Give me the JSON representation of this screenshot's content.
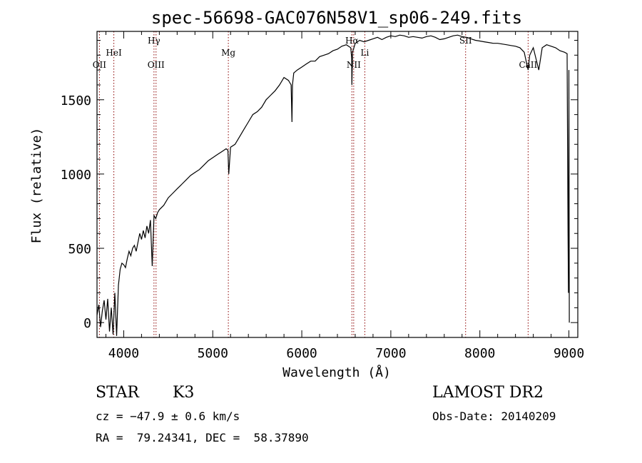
{
  "chart_data": {
    "type": "line",
    "title": "spec-56698-GAC076N58V1_sp06-249.fits",
    "xlabel": "Wavelength (Å)",
    "ylabel": "Flux (relative)",
    "xlim": [
      3700,
      9100
    ],
    "ylim": [
      -100,
      1960
    ],
    "x_ticks": [
      4000,
      5000,
      6000,
      7000,
      8000,
      9000
    ],
    "y_ticks": [
      0,
      500,
      1000,
      1500
    ],
    "x_tick_labels": [
      "4000",
      "5000",
      "6000",
      "7000",
      "8000",
      "9000"
    ],
    "y_tick_labels": [
      "0",
      "500",
      "1000",
      "1500"
    ],
    "grid": false,
    "series": [
      {
        "x": [
          3700,
          3720,
          3740,
          3760,
          3780,
          3800,
          3820,
          3840,
          3860,
          3880,
          3900,
          3920,
          3940,
          3960,
          3980,
          4000,
          4020,
          4040,
          4060,
          4080,
          4100,
          4120,
          4140,
          4160,
          4180,
          4200,
          4220,
          4240,
          4260,
          4280,
          4300,
          4320,
          4340,
          4360,
          4380,
          4400,
          4450,
          4500,
          4550,
          4600,
          4650,
          4700,
          4750,
          4800,
          4850,
          4900,
          4950,
          5000,
          5050,
          5100,
          5150,
          5170,
          5180,
          5200,
          5250,
          5300,
          5350,
          5400,
          5450,
          5500,
          5550,
          5600,
          5650,
          5700,
          5750,
          5800,
          5850,
          5880,
          5890,
          5895,
          5910,
          5950,
          6000,
          6050,
          6100,
          6150,
          6200,
          6250,
          6300,
          6350,
          6400,
          6450,
          6500,
          6550,
          6560,
          6563,
          6570,
          6600,
          6650,
          6700,
          6750,
          6800,
          6850,
          6900,
          6950,
          7000,
          7050,
          7100,
          7150,
          7200,
          7250,
          7300,
          7350,
          7400,
          7450,
          7500,
          7550,
          7600,
          7650,
          7700,
          7750,
          7800,
          7850,
          7900,
          7950,
          8000,
          8050,
          8100,
          8150,
          8200,
          8250,
          8300,
          8350,
          8400,
          8450,
          8498,
          8520,
          8542,
          8560,
          8600,
          8662,
          8700,
          8750,
          8800,
          8850,
          8900,
          8950,
          8980,
          8990,
          8995,
          9000,
          9005
        ],
        "y": [
          50,
          120,
          -30,
          80,
          150,
          20,
          160,
          -60,
          100,
          -80,
          200,
          -90,
          250,
          360,
          400,
          390,
          370,
          430,
          480,
          450,
          500,
          520,
          480,
          540,
          600,
          560,
          620,
          570,
          650,
          600,
          690,
          380,
          720,
          700,
          740,
          760,
          790,
          840,
          870,
          900,
          930,
          960,
          990,
          1010,
          1030,
          1060,
          1090,
          1110,
          1130,
          1150,
          1170,
          1160,
          1000,
          1180,
          1200,
          1250,
          1300,
          1350,
          1400,
          1420,
          1450,
          1500,
          1530,
          1560,
          1600,
          1650,
          1630,
          1600,
          1350,
          1600,
          1680,
          1700,
          1720,
          1740,
          1760,
          1760,
          1790,
          1800,
          1810,
          1830,
          1840,
          1860,
          1870,
          1850,
          1780,
          1600,
          1820,
          1880,
          1900,
          1890,
          1900,
          1910,
          1920,
          1905,
          1920,
          1930,
          1925,
          1935,
          1930,
          1920,
          1925,
          1920,
          1915,
          1925,
          1930,
          1920,
          1905,
          1910,
          1920,
          1930,
          1935,
          1925,
          1920,
          1910,
          1900,
          1895,
          1890,
          1885,
          1880,
          1880,
          1875,
          1870,
          1865,
          1860,
          1850,
          1820,
          1760,
          1700,
          1800,
          1850,
          1700,
          1850,
          1870,
          1860,
          1850,
          1830,
          1820,
          1810,
          600,
          200,
          1700,
          0
        ]
      }
    ],
    "line_markers": [
      {
        "label": "OII",
        "wavelength": 3727,
        "tier": "low"
      },
      {
        "label": "HeI",
        "wavelength": 3889,
        "tier": "mid"
      },
      {
        "label": "Hγ",
        "wavelength": 4340,
        "tier": "high"
      },
      {
        "label": "OIII",
        "wavelength": 4363,
        "tier": "low"
      },
      {
        "label": "Mg",
        "wavelength": 5175,
        "tier": "mid"
      },
      {
        "label": "Hα",
        "wavelength": 6563,
        "tier": "high"
      },
      {
        "label": "NII",
        "wavelength": 6583,
        "tier": "low"
      },
      {
        "label": "Li",
        "wavelength": 6708,
        "tier": "mid"
      },
      {
        "label": "SII",
        "wavelength": 7840,
        "tier": "high"
      },
      {
        "label": "CaII",
        "wavelength": 8542,
        "tier": "low"
      }
    ],
    "marker_color": "#8b0000",
    "line_color": "#000000"
  },
  "info": {
    "object_class": "STAR",
    "subclass": "K3",
    "survey": "LAMOST DR2",
    "redshift": "cz = −47.9 ± 0.6 km/s",
    "obs_date": "Obs-Date: 20140209",
    "coords": "RA =  79.24341, DEC =  58.37890"
  }
}
